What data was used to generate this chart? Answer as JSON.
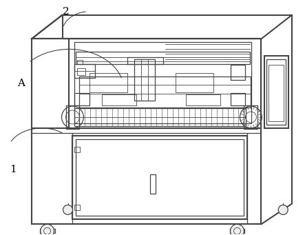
{
  "background_color": "#ffffff",
  "line_color": "#444444",
  "label_color": "#000000",
  "figsize": [
    4.43,
    3.41
  ],
  "dpi": 100
}
